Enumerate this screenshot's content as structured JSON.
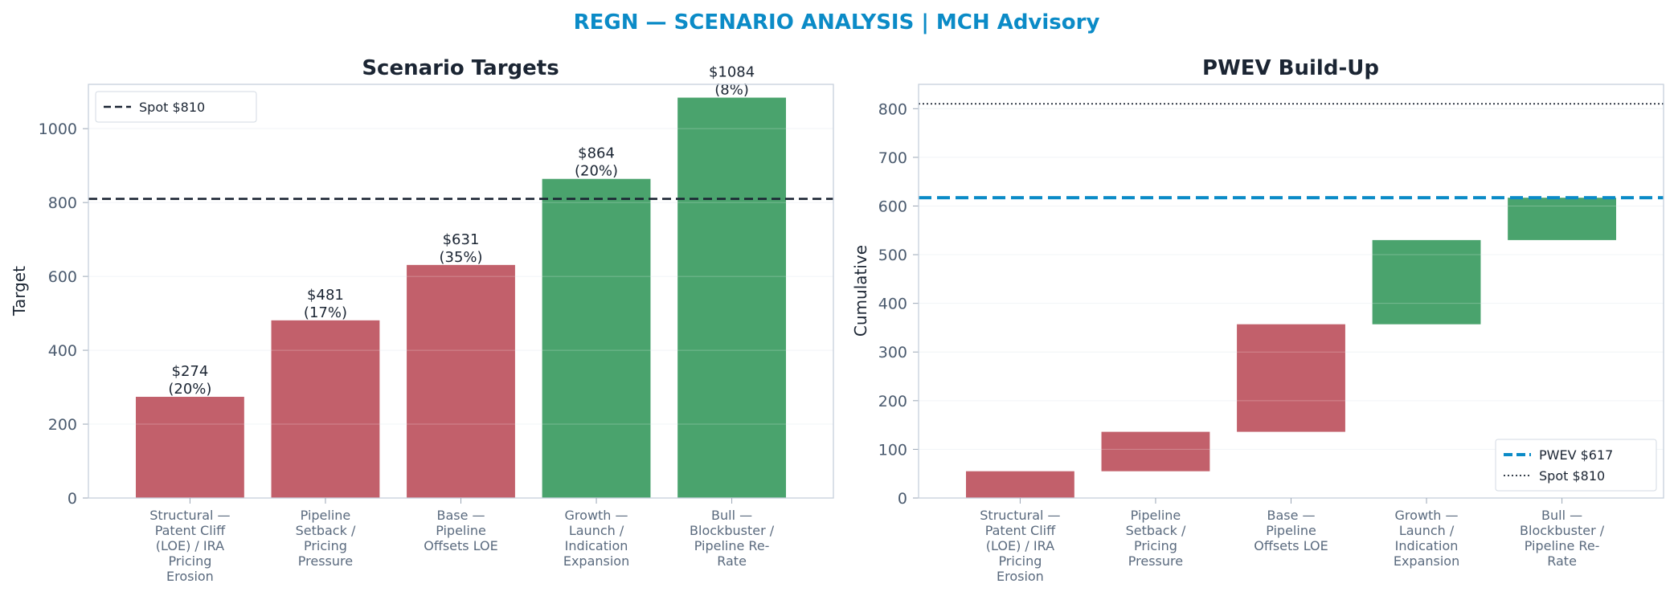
{
  "suptitle": "REGN — SCENARIO ANALYSIS | MCH Advisory",
  "colors": {
    "title": "#0b8bc7",
    "neg": "#c2606b",
    "pos": "#4aa36d",
    "spot": "#1b2533",
    "pwev": "#0b8bc7"
  },
  "chart_data": [
    {
      "type": "bar",
      "title": "Scenario Targets",
      "ylabel": "Target",
      "xlabel": "",
      "ylim": [
        0,
        1120
      ],
      "yticks": [
        "0",
        "200",
        "400",
        "600",
        "800",
        "1000"
      ],
      "categories": [
        [
          "Structural —",
          "Patent Cliff",
          "(LOE) / IRA",
          "Pricing",
          "Erosion"
        ],
        [
          "Pipeline",
          "Setback /",
          "Pricing",
          "Pressure"
        ],
        [
          "Base —",
          "Pipeline",
          "Offsets LOE"
        ],
        [
          "Growth —",
          "Launch /",
          "Indication",
          "Expansion"
        ],
        [
          "Bull —",
          "Blockbuster /",
          "Pipeline Re-",
          "Rate"
        ]
      ],
      "values": [
        274,
        481,
        631,
        864,
        1084
      ],
      "value_labels": [
        "$274",
        "$481",
        "$631",
        "$864",
        "$1084"
      ],
      "prob_labels": [
        "(20%)",
        "(17%)",
        "(35%)",
        "(20%)",
        "(8%)"
      ],
      "polarity": [
        "neg",
        "neg",
        "neg",
        "pos",
        "pos"
      ],
      "reference_lines": [
        {
          "name": "Spot $810",
          "value": 810,
          "style": "dashed"
        }
      ],
      "legend": "top-left",
      "grid": true
    },
    {
      "type": "bar",
      "subtype": "waterfall",
      "title": "PWEV Build-Up",
      "ylabel": "Cumulative",
      "xlabel": "",
      "ylim": [
        0,
        850
      ],
      "yticks": [
        "0",
        "100",
        "200",
        "300",
        "400",
        "500",
        "600",
        "700",
        "800"
      ],
      "categories": [
        [
          "Structural —",
          "Patent Cliff",
          "(LOE) / IRA",
          "Pricing",
          "Erosion"
        ],
        [
          "Pipeline",
          "Setback /",
          "Pricing",
          "Pressure"
        ],
        [
          "Base —",
          "Pipeline",
          "Offsets LOE"
        ],
        [
          "Growth —",
          "Launch /",
          "Indication",
          "Expansion"
        ],
        [
          "Bull —",
          "Blockbuster /",
          "Pipeline Re-",
          "Rate"
        ]
      ],
      "bases": [
        0,
        55,
        136,
        357,
        530
      ],
      "values": [
        55,
        81,
        221,
        173,
        87
      ],
      "polarity": [
        "neg",
        "neg",
        "neg",
        "pos",
        "pos"
      ],
      "reference_lines": [
        {
          "name": "PWEV $617",
          "value": 617,
          "style": "dashed"
        },
        {
          "name": "Spot $810",
          "value": 810,
          "style": "dotted"
        }
      ],
      "legend": "bottom-right",
      "grid": true
    }
  ]
}
